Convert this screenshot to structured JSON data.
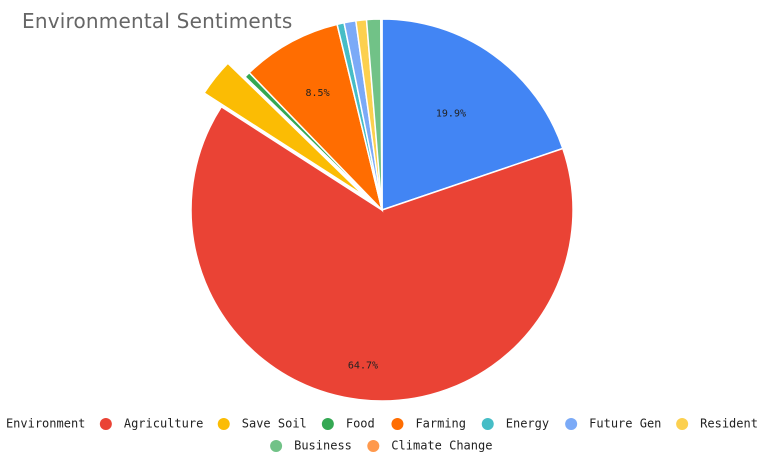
{
  "chart_data": {
    "type": "pie",
    "title": "Environmental Sentiments",
    "categories": [
      "Environment",
      "Agriculture",
      "Save Soil",
      "Food",
      "Farming",
      "Energy",
      "Future Gen",
      "Residential",
      "Business",
      "Climate Change"
    ],
    "values": [
      19.9,
      64.7,
      3.2,
      0.5,
      8.5,
      0.6,
      1.0,
      0.9,
      1.2,
      0.1
    ],
    "colors": [
      "#4285F4",
      "#EA4335",
      "#FBBC04",
      "#34A853",
      "#FF6D01",
      "#46BDC6",
      "#7BAAF7",
      "#FCD04F",
      "#71C287",
      "#FF994D"
    ],
    "data_labels": [
      {
        "index": 0,
        "text": "19.9%"
      },
      {
        "index": 1,
        "text": "64.7%"
      },
      {
        "index": 4,
        "text": "8.5%"
      }
    ],
    "exploded": [
      "Save Soil"
    ],
    "legend_position": "bottom"
  }
}
